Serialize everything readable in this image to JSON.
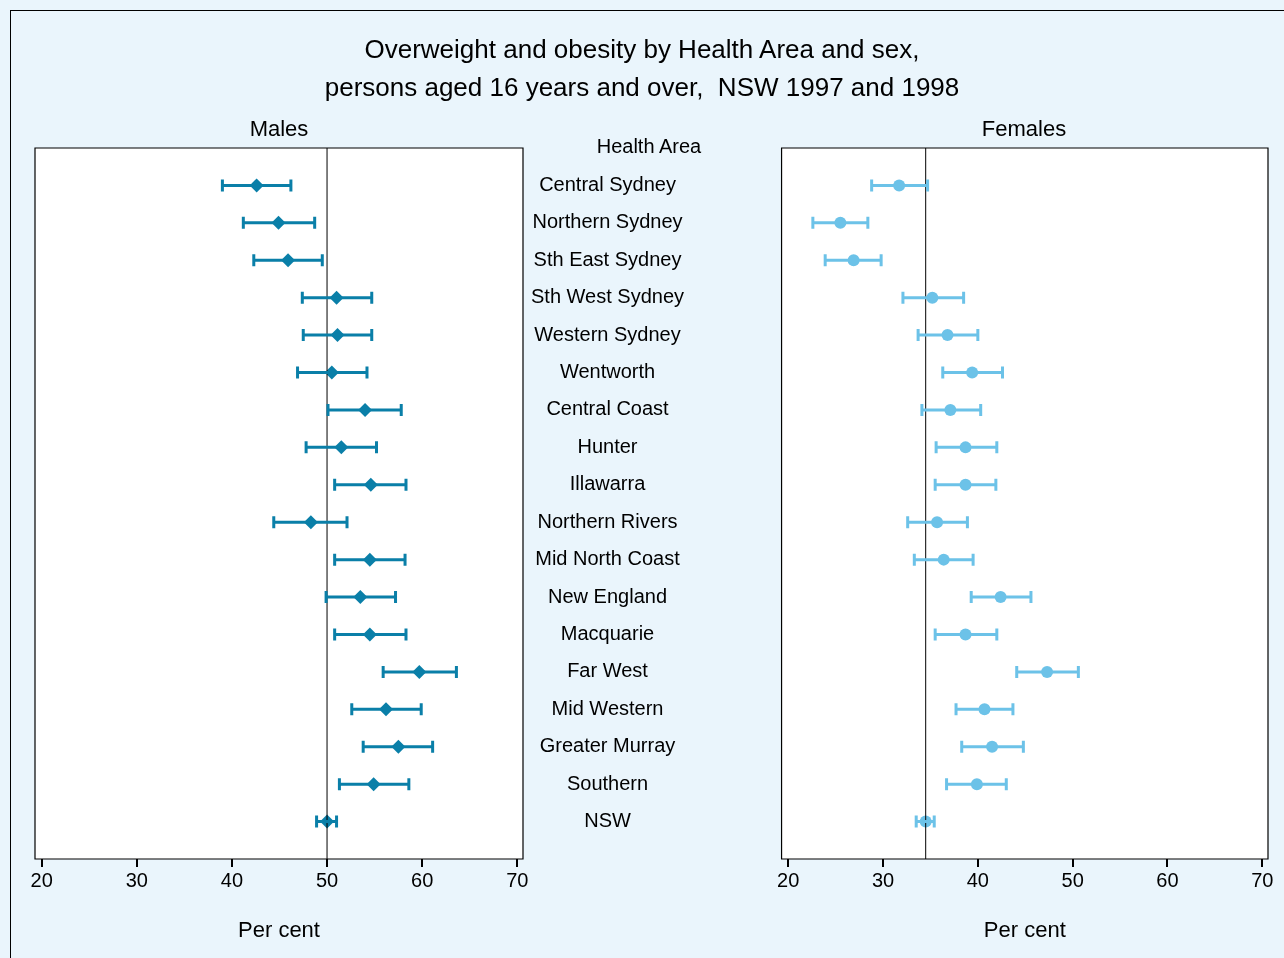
{
  "chart_data": [
    {
      "type": "scatter",
      "orientation": "horizontal",
      "title": "Overweight and obesity by Health Area and sex, persons aged 16 years and over,  NSW 1997 and 1998",
      "subtitle": "Males",
      "ylabel": "Health Area",
      "xlabel": "Per cent",
      "categories": [
        "Central Sydney",
        "Northern Sydney",
        "Sth East Sydney",
        "Sth West Sydney",
        "Western Sydney",
        "Wentworth",
        "Central Coast",
        "Hunter",
        "Illawarra",
        "Northern Rivers",
        "Mid North Coast",
        "New England",
        "Macquarie",
        "Far West",
        "Mid Western",
        "Greater Murray",
        "Southern",
        "NSW"
      ],
      "color": "#0a7fa8",
      "marker": "diamond",
      "values": [
        42.6,
        44.9,
        45.9,
        51.0,
        51.1,
        50.5,
        54.0,
        51.5,
        54.6,
        48.3,
        54.5,
        53.5,
        54.5,
        59.7,
        56.2,
        57.5,
        54.9,
        50.0
      ],
      "errors": [
        [
          39.0,
          46.2
        ],
        [
          41.2,
          48.7
        ],
        [
          42.3,
          49.5
        ],
        [
          47.4,
          54.7
        ],
        [
          47.5,
          54.7
        ],
        [
          46.9,
          54.2
        ],
        [
          50.1,
          57.8
        ],
        [
          47.8,
          55.2
        ],
        [
          50.8,
          58.3
        ],
        [
          44.4,
          52.1
        ],
        [
          50.8,
          58.2
        ],
        [
          49.9,
          57.2
        ],
        [
          50.8,
          58.3
        ],
        [
          55.9,
          63.6
        ],
        [
          52.6,
          59.9
        ],
        [
          53.8,
          61.1
        ],
        [
          51.3,
          58.6
        ],
        [
          48.9,
          51.0
        ]
      ],
      "xlim": [
        19.3,
        70.6
      ],
      "xticks": [
        20,
        30,
        40,
        50,
        60,
        70
      ],
      "ref_lines": [
        {
          "axis": "x",
          "value": 50.0
        }
      ]
    },
    {
      "type": "scatter",
      "orientation": "horizontal",
      "title": "Females",
      "xlabel": "Per cent",
      "tick_labels": "x",
      "categories": [
        null,
        null,
        null,
        null,
        null,
        null,
        null,
        null,
        null,
        null,
        null,
        null,
        null,
        null,
        null,
        null,
        null,
        null
      ],
      "color": "#6cc2e8",
      "marker": "circle",
      "values": [
        31.7,
        25.5,
        26.9,
        35.2,
        36.8,
        39.4,
        37.1,
        38.7,
        38.7,
        35.7,
        36.4,
        42.4,
        38.7,
        47.3,
        40.7,
        41.5,
        39.9,
        34.5
      ],
      "errors": [
        [
          28.8,
          34.7
        ],
        [
          22.6,
          28.4
        ],
        [
          23.9,
          29.8
        ],
        [
          32.1,
          38.5
        ],
        [
          33.7,
          40.0
        ],
        [
          36.3,
          42.6
        ],
        [
          34.1,
          40.3
        ],
        [
          35.6,
          42.0
        ],
        [
          35.5,
          41.9
        ],
        [
          32.6,
          38.9
        ],
        [
          33.3,
          39.5
        ],
        [
          39.3,
          45.6
        ],
        [
          35.5,
          42.0
        ],
        [
          44.1,
          50.6
        ],
        [
          37.7,
          43.7
        ],
        [
          38.3,
          44.8
        ],
        [
          36.7,
          43.0
        ],
        [
          33.5,
          35.4
        ]
      ],
      "xlim": [
        19.3,
        70.6
      ],
      "xticks": [
        20,
        30,
        40,
        50,
        60,
        70
      ],
      "ref_lines": [
        {
          "axis": "x",
          "value": 34.5
        }
      ]
    }
  ]
}
